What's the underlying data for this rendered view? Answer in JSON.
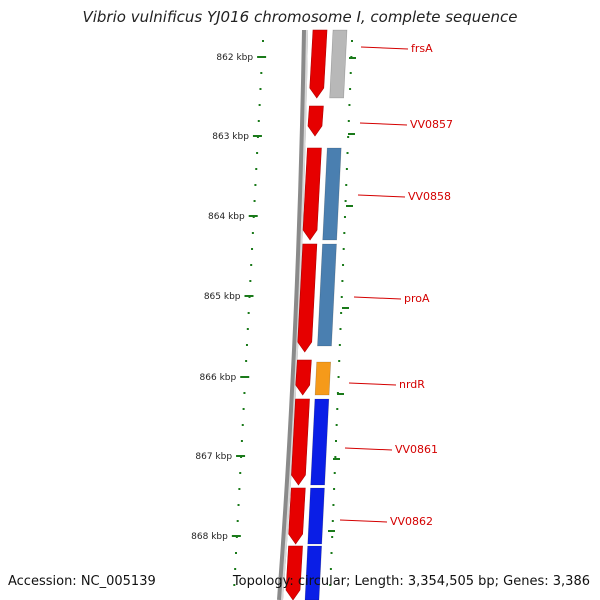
{
  "title": "Vibrio vulnificus YJ016 chromosome I, complete sequence",
  "footer": {
    "accession": "Accession: NC_005139",
    "stats": "Topology: circular; Length: 3,354,505 bp; Genes: 3,386"
  },
  "colors": {
    "backbone": "#8a8a8a",
    "tick": "#1a7a1a",
    "forward_gene": "#e60000",
    "label": "#d40000",
    "gray_gene": "#b8b8b8",
    "steel_gene": "#4a7fb0",
    "orange_gene": "#f59a1a",
    "blue_gene": "#0a1ee6"
  },
  "ruler": {
    "unit": "kbp",
    "labels": [
      "862 kbp",
      "863 kbp",
      "864 kbp",
      "865 kbp",
      "866 kbp",
      "867 kbp",
      "868 kbp"
    ]
  },
  "genes": [
    {
      "label": "frsA",
      "color": "gray_gene"
    },
    {
      "label": "VV0857",
      "color": "forward_gene"
    },
    {
      "label": "VV0858",
      "color": "steel_gene"
    },
    {
      "label": "proA",
      "color": "steel_gene"
    },
    {
      "label": "nrdR",
      "color": "orange_gene"
    },
    {
      "label": "VV0861",
      "color": "blue_gene"
    },
    {
      "label": "VV0862",
      "color": "blue_gene"
    }
  ]
}
